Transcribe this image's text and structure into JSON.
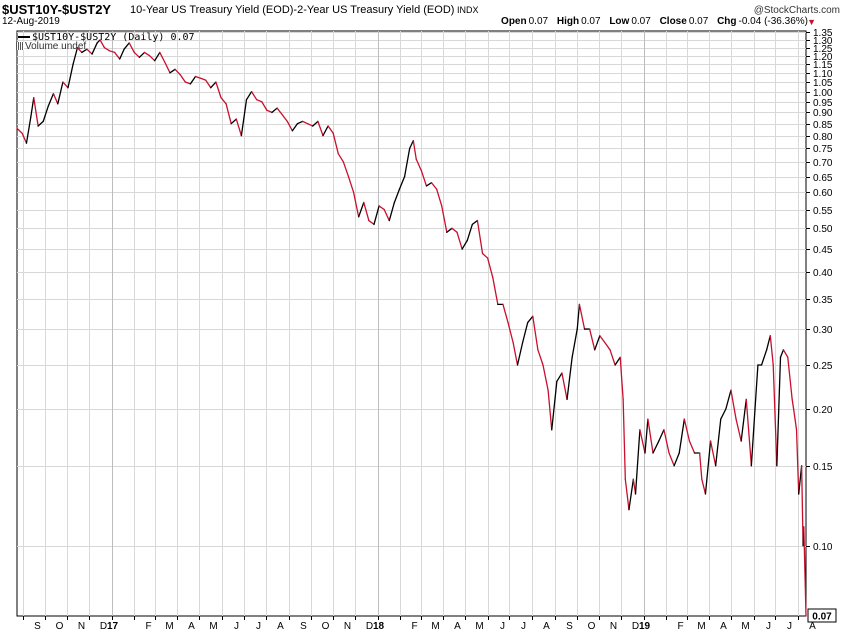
{
  "header": {
    "symbol": "$UST10Y-$UST2Y",
    "description": "10-Year US Treasury Yield (EOD)-2-Year US Treasury Yield (EOD)",
    "exchange": "INDX",
    "date": "12-Aug-2019",
    "watermark": "@StockCharts.com",
    "ohlc": {
      "open_label": "Open",
      "open": "0.07",
      "high_label": "High",
      "high": "0.07",
      "low_label": "Low",
      "low": "0.07",
      "close_label": "Close",
      "close": "0.07",
      "chg_label": "Chg",
      "chg": "-0.04 (-36.36%)"
    }
  },
  "legend": {
    "series_label": "$UST10Y-$UST2Y (Daily) 0.07",
    "volume_label": "Volume undef"
  },
  "colors": {
    "up": "#000000",
    "down": "#c8102e",
    "grid": "#d8d8d8",
    "axis": "#000000"
  },
  "last_value_label": "0.07",
  "chart_data": {
    "type": "line",
    "y_scale": "log",
    "ylim": [
      0.07,
      1.36
    ],
    "y_ticks": [
      1.35,
      1.3,
      1.25,
      1.2,
      1.15,
      1.1,
      1.05,
      1.0,
      0.95,
      0.9,
      0.85,
      0.8,
      0.75,
      0.7,
      0.65,
      0.6,
      0.55,
      0.5,
      0.45,
      0.4,
      0.35,
      0.3,
      0.25,
      0.2,
      0.15,
      0.1
    ],
    "y_tick_labels": [
      "1.35",
      "1.30",
      "1.25",
      "1.20",
      "1.15",
      "1.10",
      "1.05",
      "1.00",
      "0.95",
      "0.90",
      "0.85",
      "0.80",
      "0.75",
      "0.70",
      "0.65",
      "0.60",
      "0.55",
      "0.50",
      "0.45",
      "0.40",
      "0.35",
      "0.30",
      "0.25",
      "0.20",
      "0.15",
      "0.10"
    ],
    "x_range": [
      "2016-08-24",
      "2019-08-12"
    ],
    "x_ticks": [
      {
        "date": "2016-09-01",
        "label": "S"
      },
      {
        "date": "2016-10-01",
        "label": "O"
      },
      {
        "date": "2016-11-01",
        "label": "N"
      },
      {
        "date": "2016-12-01",
        "label": "D"
      },
      {
        "date": "2017-01-01",
        "label": "17"
      },
      {
        "date": "2017-02-01",
        "label": "F"
      },
      {
        "date": "2017-03-01",
        "label": "M"
      },
      {
        "date": "2017-04-01",
        "label": "A"
      },
      {
        "date": "2017-05-01",
        "label": "M"
      },
      {
        "date": "2017-06-01",
        "label": "J"
      },
      {
        "date": "2017-07-01",
        "label": "J"
      },
      {
        "date": "2017-08-01",
        "label": "A"
      },
      {
        "date": "2017-09-01",
        "label": "S"
      },
      {
        "date": "2017-10-01",
        "label": "O"
      },
      {
        "date": "2017-11-01",
        "label": "N"
      },
      {
        "date": "2017-12-01",
        "label": "D"
      },
      {
        "date": "2018-01-01",
        "label": "18"
      },
      {
        "date": "2018-02-01",
        "label": "F"
      },
      {
        "date": "2018-03-01",
        "label": "M"
      },
      {
        "date": "2018-04-01",
        "label": "A"
      },
      {
        "date": "2018-05-01",
        "label": "M"
      },
      {
        "date": "2018-06-01",
        "label": "J"
      },
      {
        "date": "2018-07-01",
        "label": "J"
      },
      {
        "date": "2018-08-01",
        "label": "A"
      },
      {
        "date": "2018-09-01",
        "label": "S"
      },
      {
        "date": "2018-10-01",
        "label": "O"
      },
      {
        "date": "2018-11-01",
        "label": "N"
      },
      {
        "date": "2018-12-01",
        "label": "D"
      },
      {
        "date": "2019-01-01",
        "label": "19"
      },
      {
        "date": "2019-02-01",
        "label": "F"
      },
      {
        "date": "2019-03-01",
        "label": "M"
      },
      {
        "date": "2019-04-01",
        "label": "A"
      },
      {
        "date": "2019-05-01",
        "label": "M"
      },
      {
        "date": "2019-06-01",
        "label": "J"
      },
      {
        "date": "2019-07-01",
        "label": "J"
      },
      {
        "date": "2019-08-01",
        "label": "A"
      }
    ],
    "year_ticks": [
      "17",
      "18",
      "19"
    ],
    "series": [
      {
        "points": [
          [
            "2016-08-24",
            0.83
          ],
          [
            "2016-08-31",
            0.81
          ],
          [
            "2016-09-06",
            0.77
          ],
          [
            "2016-09-12",
            0.88
          ],
          [
            "2016-09-16",
            0.97
          ],
          [
            "2016-09-22",
            0.84
          ],
          [
            "2016-09-29",
            0.86
          ],
          [
            "2016-10-06",
            0.93
          ],
          [
            "2016-10-13",
            0.99
          ],
          [
            "2016-10-19",
            0.94
          ],
          [
            "2016-10-26",
            1.05
          ],
          [
            "2016-11-02",
            1.02
          ],
          [
            "2016-11-09",
            1.15
          ],
          [
            "2016-11-15",
            1.25
          ],
          [
            "2016-11-21",
            1.22
          ],
          [
            "2016-11-28",
            1.24
          ],
          [
            "2016-12-05",
            1.21
          ],
          [
            "2016-12-12",
            1.28
          ],
          [
            "2016-12-16",
            1.3
          ],
          [
            "2016-12-22",
            1.25
          ],
          [
            "2016-12-29",
            1.23
          ],
          [
            "2017-01-05",
            1.22
          ],
          [
            "2017-01-12",
            1.18
          ],
          [
            "2017-01-18",
            1.24
          ],
          [
            "2017-01-25",
            1.28
          ],
          [
            "2017-02-01",
            1.22
          ],
          [
            "2017-02-08",
            1.19
          ],
          [
            "2017-02-15",
            1.22
          ],
          [
            "2017-02-22",
            1.2
          ],
          [
            "2017-03-01",
            1.17
          ],
          [
            "2017-03-08",
            1.22
          ],
          [
            "2017-03-15",
            1.16
          ],
          [
            "2017-03-22",
            1.1
          ],
          [
            "2017-03-29",
            1.12
          ],
          [
            "2017-04-05",
            1.09
          ],
          [
            "2017-04-12",
            1.05
          ],
          [
            "2017-04-19",
            1.04
          ],
          [
            "2017-04-26",
            1.08
          ],
          [
            "2017-05-03",
            1.07
          ],
          [
            "2017-05-10",
            1.06
          ],
          [
            "2017-05-17",
            1.02
          ],
          [
            "2017-05-24",
            1.05
          ],
          [
            "2017-05-31",
            0.97
          ],
          [
            "2017-06-07",
            0.94
          ],
          [
            "2017-06-14",
            0.85
          ],
          [
            "2017-06-21",
            0.87
          ],
          [
            "2017-06-28",
            0.8
          ],
          [
            "2017-07-05",
            0.96
          ],
          [
            "2017-07-12",
            1.0
          ],
          [
            "2017-07-19",
            0.96
          ],
          [
            "2017-07-26",
            0.95
          ],
          [
            "2017-08-02",
            0.91
          ],
          [
            "2017-08-09",
            0.9
          ],
          [
            "2017-08-16",
            0.92
          ],
          [
            "2017-08-23",
            0.89
          ],
          [
            "2017-08-30",
            0.86
          ],
          [
            "2017-09-06",
            0.82
          ],
          [
            "2017-09-13",
            0.85
          ],
          [
            "2017-09-20",
            0.86
          ],
          [
            "2017-09-27",
            0.85
          ],
          [
            "2017-10-04",
            0.84
          ],
          [
            "2017-10-11",
            0.86
          ],
          [
            "2017-10-18",
            0.8
          ],
          [
            "2017-10-25",
            0.84
          ],
          [
            "2017-11-01",
            0.81
          ],
          [
            "2017-11-08",
            0.73
          ],
          [
            "2017-11-15",
            0.7
          ],
          [
            "2017-11-22",
            0.65
          ],
          [
            "2017-11-29",
            0.6
          ],
          [
            "2017-12-06",
            0.53
          ],
          [
            "2017-12-13",
            0.57
          ],
          [
            "2017-12-20",
            0.52
          ],
          [
            "2017-12-27",
            0.51
          ],
          [
            "2018-01-03",
            0.56
          ],
          [
            "2018-01-10",
            0.55
          ],
          [
            "2018-01-17",
            0.52
          ],
          [
            "2018-01-24",
            0.57
          ],
          [
            "2018-01-31",
            0.61
          ],
          [
            "2018-02-07",
            0.65
          ],
          [
            "2018-02-14",
            0.75
          ],
          [
            "2018-02-19",
            0.78
          ],
          [
            "2018-02-23",
            0.71
          ],
          [
            "2018-03-02",
            0.67
          ],
          [
            "2018-03-09",
            0.62
          ],
          [
            "2018-03-16",
            0.63
          ],
          [
            "2018-03-23",
            0.61
          ],
          [
            "2018-03-30",
            0.56
          ],
          [
            "2018-04-06",
            0.49
          ],
          [
            "2018-04-13",
            0.5
          ],
          [
            "2018-04-20",
            0.49
          ],
          [
            "2018-04-27",
            0.45
          ],
          [
            "2018-05-04",
            0.47
          ],
          [
            "2018-05-11",
            0.51
          ],
          [
            "2018-05-18",
            0.52
          ],
          [
            "2018-05-25",
            0.44
          ],
          [
            "2018-06-01",
            0.43
          ],
          [
            "2018-06-08",
            0.39
          ],
          [
            "2018-06-15",
            0.34
          ],
          [
            "2018-06-22",
            0.34
          ],
          [
            "2018-06-29",
            0.31
          ],
          [
            "2018-07-06",
            0.28
          ],
          [
            "2018-07-12",
            0.25
          ],
          [
            "2018-07-19",
            0.28
          ],
          [
            "2018-07-26",
            0.31
          ],
          [
            "2018-08-02",
            0.32
          ],
          [
            "2018-08-09",
            0.27
          ],
          [
            "2018-08-16",
            0.25
          ],
          [
            "2018-08-23",
            0.22
          ],
          [
            "2018-08-28",
            0.18
          ],
          [
            "2018-09-04",
            0.23
          ],
          [
            "2018-09-11",
            0.24
          ],
          [
            "2018-09-18",
            0.21
          ],
          [
            "2018-09-25",
            0.26
          ],
          [
            "2018-10-02",
            0.3
          ],
          [
            "2018-10-05",
            0.34
          ],
          [
            "2018-10-12",
            0.3
          ],
          [
            "2018-10-19",
            0.3
          ],
          [
            "2018-10-26",
            0.27
          ],
          [
            "2018-11-02",
            0.29
          ],
          [
            "2018-11-09",
            0.28
          ],
          [
            "2018-11-16",
            0.27
          ],
          [
            "2018-11-23",
            0.25
          ],
          [
            "2018-11-30",
            0.26
          ],
          [
            "2018-12-04",
            0.21
          ],
          [
            "2018-12-07",
            0.14
          ],
          [
            "2018-12-12",
            0.12
          ],
          [
            "2018-12-18",
            0.14
          ],
          [
            "2018-12-21",
            0.13
          ],
          [
            "2018-12-27",
            0.18
          ],
          [
            "2019-01-03",
            0.16
          ],
          [
            "2019-01-07",
            0.19
          ],
          [
            "2019-01-14",
            0.16
          ],
          [
            "2019-01-22",
            0.17
          ],
          [
            "2019-01-29",
            0.18
          ],
          [
            "2019-02-05",
            0.16
          ],
          [
            "2019-02-12",
            0.15
          ],
          [
            "2019-02-19",
            0.16
          ],
          [
            "2019-02-26",
            0.19
          ],
          [
            "2019-03-05",
            0.17
          ],
          [
            "2019-03-12",
            0.16
          ],
          [
            "2019-03-19",
            0.16
          ],
          [
            "2019-03-22",
            0.14
          ],
          [
            "2019-03-27",
            0.13
          ],
          [
            "2019-04-03",
            0.17
          ],
          [
            "2019-04-10",
            0.15
          ],
          [
            "2019-04-17",
            0.19
          ],
          [
            "2019-04-24",
            0.2
          ],
          [
            "2019-05-01",
            0.22
          ],
          [
            "2019-05-08",
            0.19
          ],
          [
            "2019-05-15",
            0.17
          ],
          [
            "2019-05-22",
            0.21
          ],
          [
            "2019-05-29",
            0.15
          ],
          [
            "2019-06-03",
            0.2
          ],
          [
            "2019-06-07",
            0.25
          ],
          [
            "2019-06-12",
            0.25
          ],
          [
            "2019-06-19",
            0.27
          ],
          [
            "2019-06-24",
            0.29
          ],
          [
            "2019-06-28",
            0.25
          ],
          [
            "2019-07-03",
            0.15
          ],
          [
            "2019-07-08",
            0.26
          ],
          [
            "2019-07-12",
            0.27
          ],
          [
            "2019-07-18",
            0.26
          ],
          [
            "2019-07-24",
            0.21
          ],
          [
            "2019-07-26",
            0.2
          ],
          [
            "2019-07-30",
            0.18
          ],
          [
            "2019-08-02",
            0.13
          ],
          [
            "2019-08-06",
            0.15
          ],
          [
            "2019-08-08",
            0.1
          ],
          [
            "2019-08-09",
            0.11
          ],
          [
            "2019-08-12",
            0.07
          ]
        ]
      }
    ]
  }
}
